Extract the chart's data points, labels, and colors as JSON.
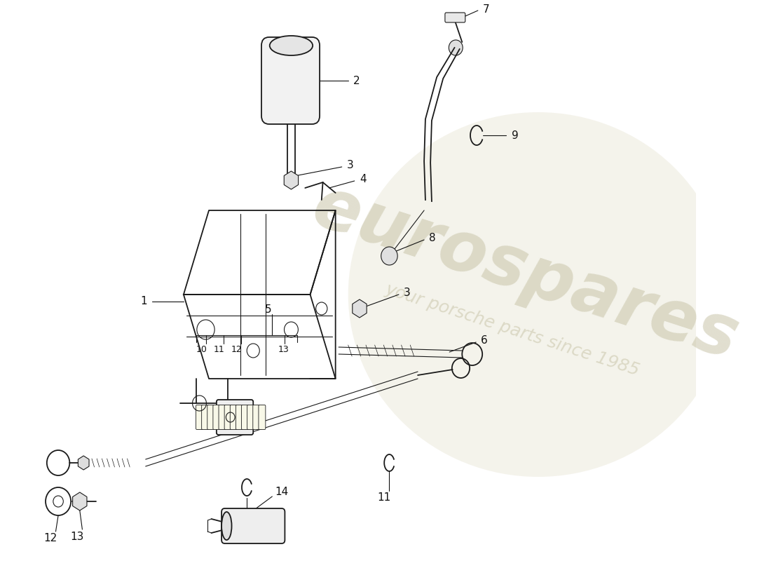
{
  "bg_color": "#ffffff",
  "line_color": "#1a1a1a",
  "annotation_color": "#111111",
  "watermark_color": "#c8c4a8",
  "font_size": 11,
  "watermark_text": "eurospares",
  "watermark_subtext": "your porsche parts since 1985"
}
